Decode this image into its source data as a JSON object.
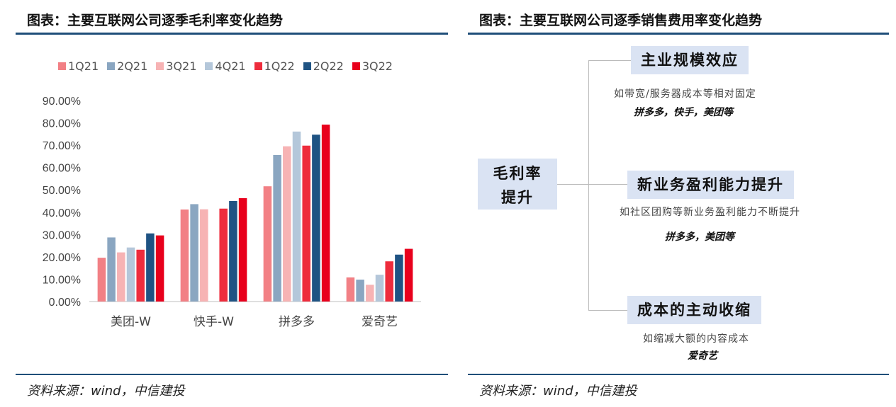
{
  "left": {
    "title": "图表：主要互联网公司逐季毛利率变化趋势",
    "source": "资料来源：wind，中信建投"
  },
  "right": {
    "title": "图表：主要互联网公司逐季销售费用率变化趋势",
    "source": "资料来源：wind，中信建投",
    "root": [
      "毛利率",
      "提升"
    ],
    "branches": [
      {
        "label": "主业规模效应",
        "desc": "如带宽/服务器成本等相对固定",
        "example": "拼多多，快手，美团等"
      },
      {
        "label": "新业务盈利能力提升",
        "desc": "如社区团购等新业务盈利能力不断提升",
        "example": "拼多多，美团等"
      },
      {
        "label": "成本的主动收缩",
        "desc": "如缩减大额的内容成本",
        "example": "爱奇艺"
      }
    ]
  },
  "chart_data": {
    "type": "bar",
    "categories": [
      "美团-W",
      "快手-W",
      "拼多多",
      "爱奇艺"
    ],
    "ylim": [
      0,
      90
    ],
    "yticks": [
      "0.00%",
      "10.00%",
      "20.00%",
      "30.00%",
      "40.00%",
      "50.00%",
      "60.00%",
      "70.00%",
      "80.00%",
      "90.00%"
    ],
    "series": [
      {
        "name": "1Q21",
        "color": "#f28085",
        "values": [
          19.6,
          41.2,
          51.6,
          10.8
        ]
      },
      {
        "name": "2Q21",
        "color": "#8aa6c1",
        "values": [
          28.7,
          43.6,
          65.6,
          9.8
        ]
      },
      {
        "name": "3Q21",
        "color": "#f7b3b4",
        "values": [
          22.0,
          41.3,
          69.5,
          7.5
        ]
      },
      {
        "name": "4Q21",
        "color": "#b4c7da",
        "values": [
          24.2,
          null,
          76.1,
          12.0
        ]
      },
      {
        "name": "1Q22",
        "color": "#ee2c3c",
        "values": [
          23.2,
          41.6,
          69.8,
          18.0
        ]
      },
      {
        "name": "2Q22",
        "color": "#1f5383",
        "values": [
          30.5,
          45.0,
          74.7,
          21.0
        ]
      },
      {
        "name": "3Q22",
        "color": "#e8001c",
        "values": [
          29.6,
          46.3,
          79.2,
          23.6
        ]
      }
    ]
  }
}
